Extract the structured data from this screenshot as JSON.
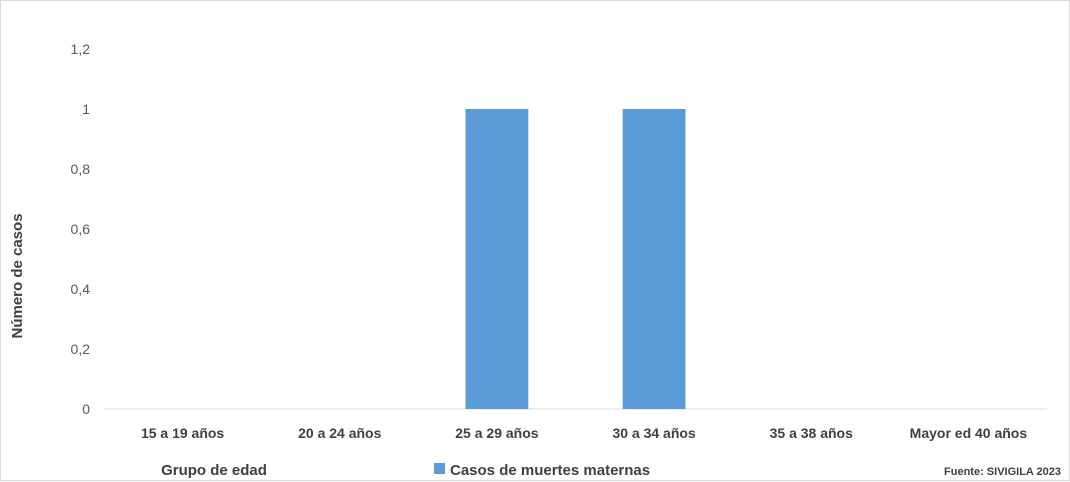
{
  "chart_data": {
    "type": "bar",
    "categories": [
      "15 a 19 años",
      "20 a 24 años",
      "25 a 29 años",
      "30 a 34 años",
      "35 a 38 años",
      "Mayor ed 40 años"
    ],
    "series": [
      {
        "name": "Casos de muertes maternas",
        "values": [
          0,
          0,
          1,
          1,
          0,
          0
        ],
        "color": "#5b9bd5"
      }
    ],
    "y_ticks": [
      "0",
      "0,2",
      "0,4",
      "0,6",
      "0,8",
      "1",
      "1,2"
    ],
    "ylim": [
      0,
      1.2
    ],
    "xlabel": "Grupo de edad",
    "ylabel": "Número de casos",
    "grid": false,
    "legend_position": "bottom",
    "source": "Fuente: SIVIGILA 2023"
  }
}
